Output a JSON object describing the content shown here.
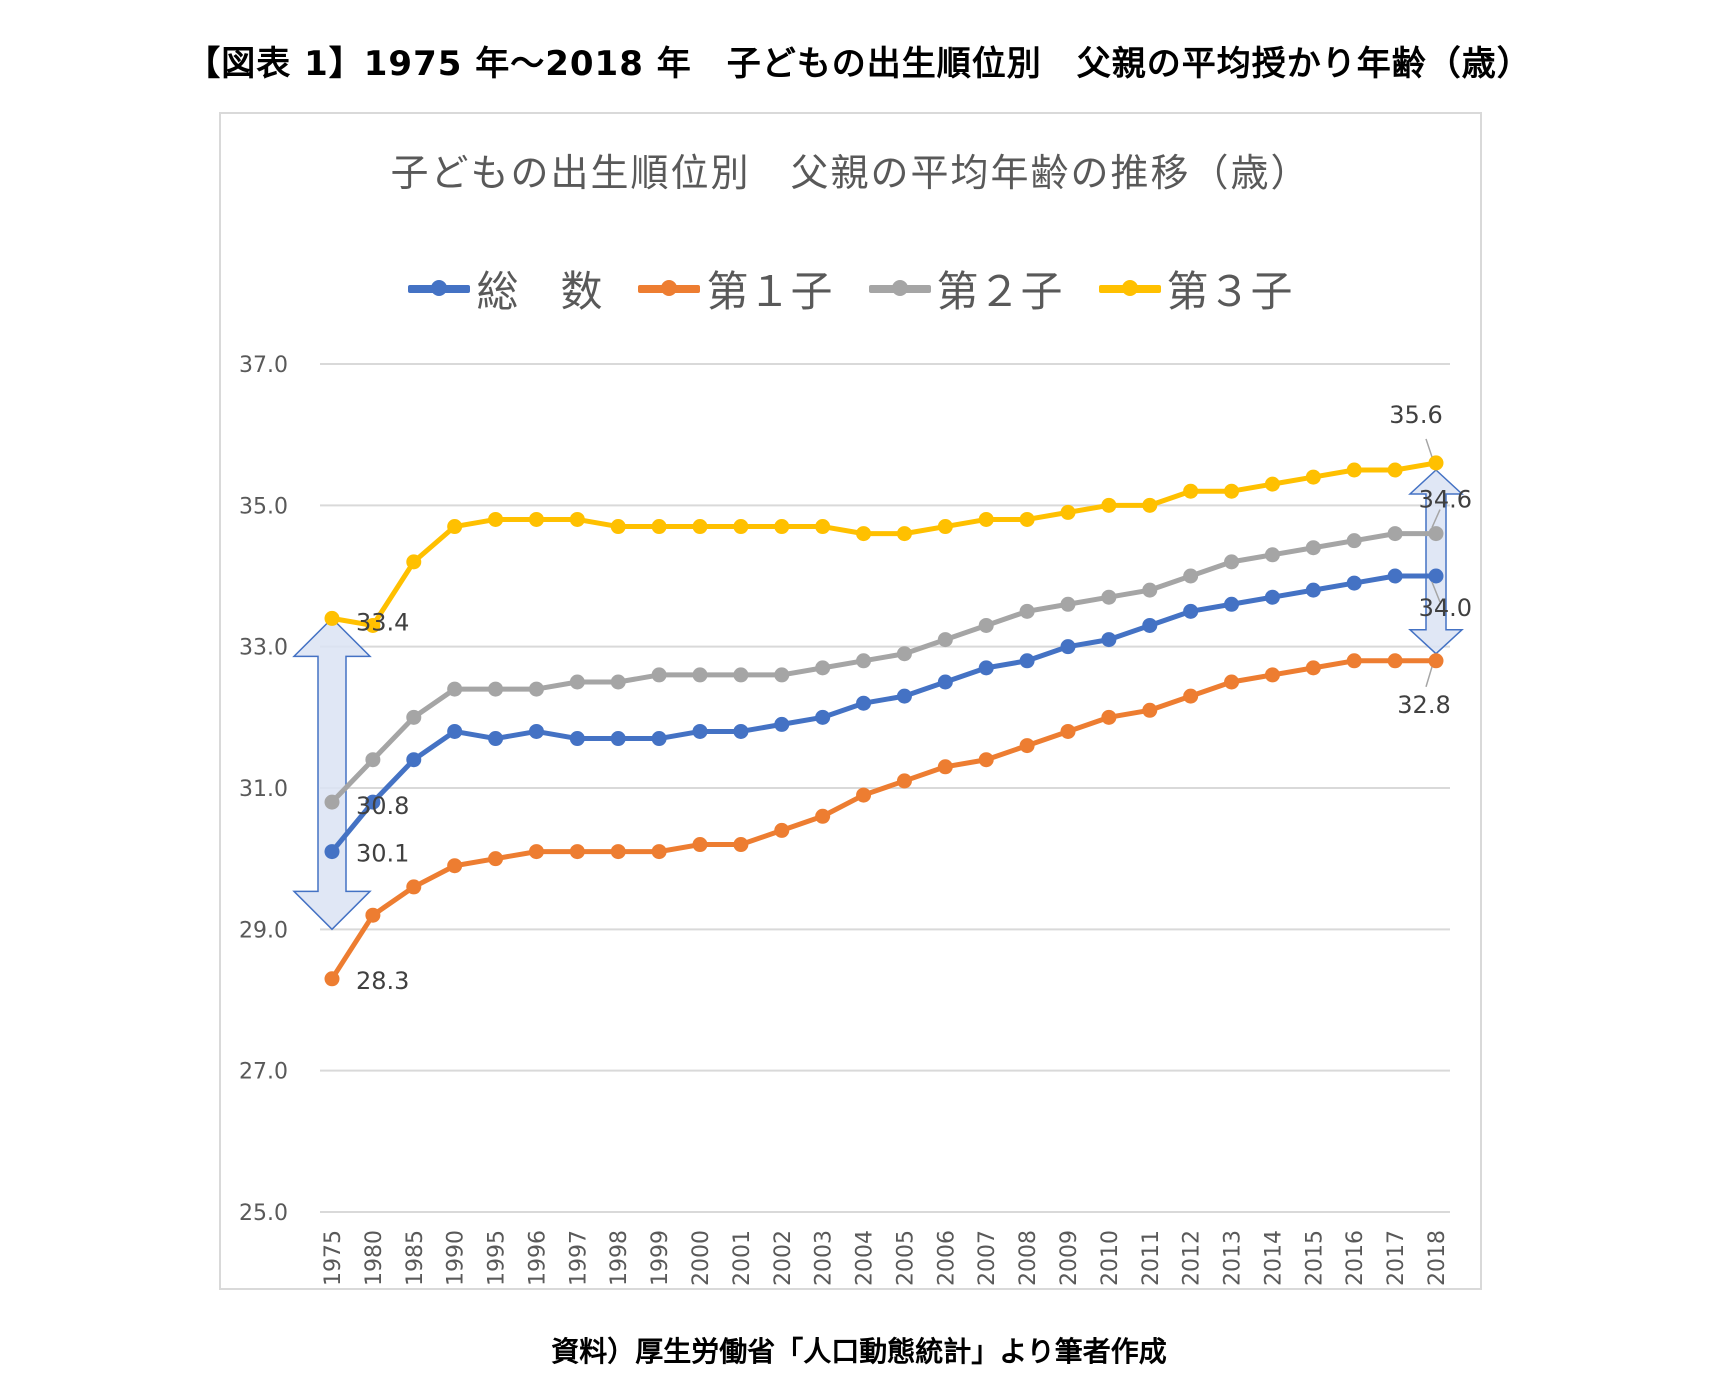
{
  "figure_title": "【図表 1】1975 年～2018 年　子どもの出生順位別　父親の平均授かり年齢（歳）",
  "source": "資料）厚生労働省「人口動態統計」より筆者作成",
  "chart_data": {
    "type": "line",
    "title": "子どもの出生順位別　父親の平均年齢の推移（歳）",
    "xlabel": "",
    "ylabel": "",
    "ylim": [
      25,
      37
    ],
    "yticks": [
      "25.0",
      "27.0",
      "29.0",
      "31.0",
      "33.0",
      "35.0",
      "37.0"
    ],
    "grid": true,
    "legend_position": "top",
    "categories": [
      "1975",
      "1980",
      "1985",
      "1990",
      "1995",
      "1996",
      "1997",
      "1998",
      "1999",
      "2000",
      "2001",
      "2002",
      "2003",
      "2004",
      "2005",
      "2006",
      "2007",
      "2008",
      "2009",
      "2010",
      "2011",
      "2012",
      "2013",
      "2014",
      "2015",
      "2016",
      "2017",
      "2018"
    ],
    "series": [
      {
        "name": "総　数",
        "color": "#4472c4",
        "values": [
          30.1,
          30.8,
          31.4,
          31.8,
          31.7,
          31.8,
          31.7,
          31.7,
          31.7,
          31.8,
          31.8,
          31.9,
          32.0,
          32.2,
          32.3,
          32.5,
          32.7,
          32.8,
          33.0,
          33.1,
          33.3,
          33.5,
          33.6,
          33.7,
          33.8,
          33.9,
          34.0,
          34.0
        ]
      },
      {
        "name": "第１子",
        "color": "#ed7d31",
        "values": [
          28.3,
          29.2,
          29.6,
          29.9,
          30.0,
          30.1,
          30.1,
          30.1,
          30.1,
          30.2,
          30.2,
          30.4,
          30.6,
          30.9,
          31.1,
          31.3,
          31.4,
          31.6,
          31.8,
          32.0,
          32.1,
          32.3,
          32.5,
          32.6,
          32.7,
          32.8,
          32.8,
          32.8
        ]
      },
      {
        "name": "第２子",
        "color": "#a5a5a5",
        "values": [
          30.8,
          31.4,
          32.0,
          32.4,
          32.4,
          32.4,
          32.5,
          32.5,
          32.6,
          32.6,
          32.6,
          32.6,
          32.7,
          32.8,
          32.9,
          33.1,
          33.3,
          33.5,
          33.6,
          33.7,
          33.8,
          34.0,
          34.2,
          34.3,
          34.4,
          34.5,
          34.6,
          34.6
        ]
      },
      {
        "name": "第３子",
        "color": "#ffc000",
        "values": [
          33.4,
          33.3,
          34.2,
          34.7,
          34.8,
          34.8,
          34.8,
          34.7,
          34.7,
          34.7,
          34.7,
          34.7,
          34.7,
          34.6,
          34.6,
          34.7,
          34.8,
          34.8,
          34.9,
          35.0,
          35.0,
          35.2,
          35.2,
          35.3,
          35.4,
          35.5,
          35.5,
          35.6
        ]
      }
    ],
    "annotations": [
      {
        "series": 3,
        "index": 0,
        "text": "33.4"
      },
      {
        "series": 2,
        "index": 0,
        "text": "30.8"
      },
      {
        "series": 0,
        "index": 0,
        "text": "30.1"
      },
      {
        "series": 1,
        "index": 0,
        "text": "28.3"
      },
      {
        "series": 3,
        "index": 27,
        "text": "35.6"
      },
      {
        "series": 2,
        "index": 27,
        "text": "34.6"
      },
      {
        "series": 0,
        "index": 27,
        "text": "34.0"
      },
      {
        "series": 1,
        "index": 27,
        "text": "32.8"
      }
    ],
    "range_arrows": [
      {
        "index": 0,
        "from": 29.0,
        "to": 33.4
      },
      {
        "index": 27,
        "from": 32.9,
        "to": 35.5
      }
    ]
  }
}
